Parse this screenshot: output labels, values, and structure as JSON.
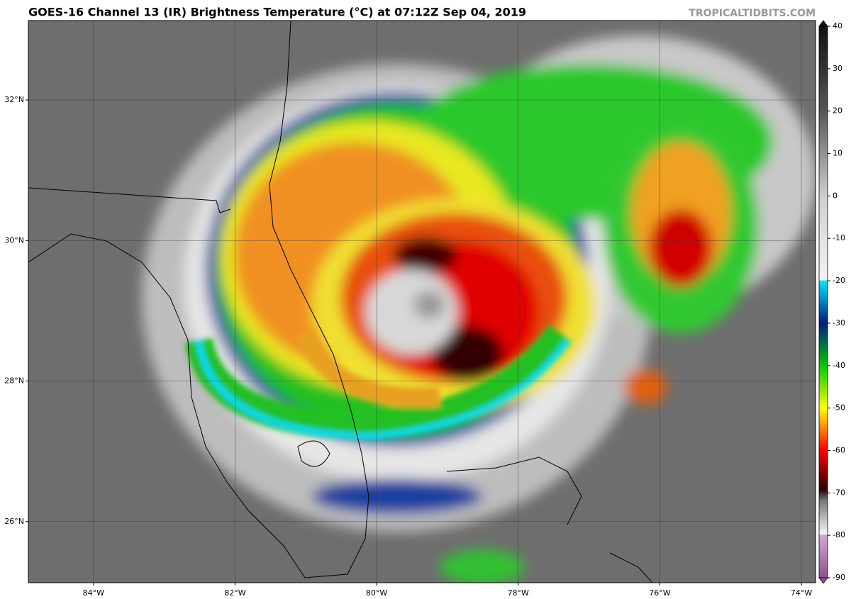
{
  "header": {
    "title": "GOES-16 Channel 13 (IR) Brightness Temperature (°C) at 07:12Z Sep 04, 2019",
    "credit": "TROPICALTIDBITS.COM"
  },
  "map": {
    "xlim": [
      -84.92,
      -73.8
    ],
    "ylim": [
      25.13,
      33.13
    ],
    "xticks": [
      {
        "value": -84,
        "label": "84°W"
      },
      {
        "value": -82,
        "label": "82°W"
      },
      {
        "value": -80,
        "label": "80°W"
      },
      {
        "value": -78,
        "label": "78°W"
      },
      {
        "value": -76,
        "label": "76°W"
      },
      {
        "value": -74,
        "label": "74°W"
      }
    ],
    "yticks": [
      {
        "value": 26,
        "label": "26°N"
      },
      {
        "value": 28,
        "label": "28°N"
      },
      {
        "value": 30,
        "label": "30°N"
      },
      {
        "value": 32,
        "label": "32°N"
      }
    ]
  },
  "colorbar": {
    "range": [
      -90,
      40
    ],
    "ticks": [
      40,
      30,
      20,
      10,
      0,
      -10,
      -20,
      -30,
      -40,
      -50,
      -60,
      -70,
      -80,
      -90
    ]
  }
}
